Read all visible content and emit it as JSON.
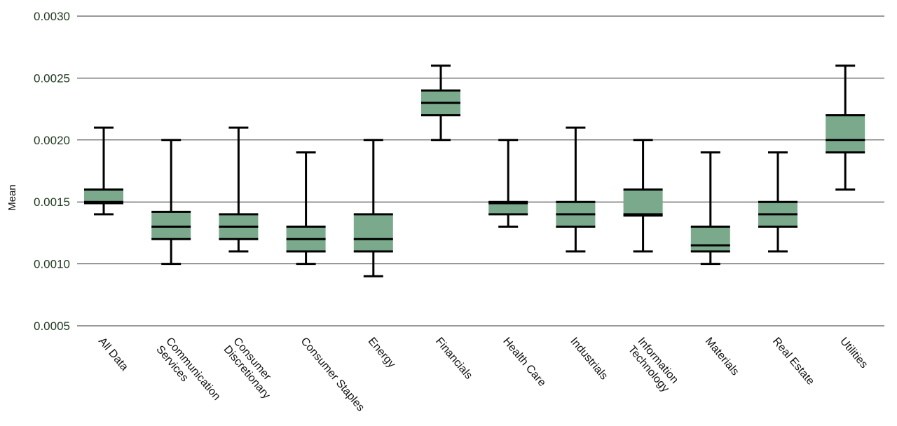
{
  "chart_data": {
    "type": "box",
    "ylabel": "Mean",
    "ylim": [
      0.0005,
      0.003
    ],
    "yticks": [
      "0.0005",
      "0.0010",
      "0.0015",
      "0.0020",
      "0.0025",
      "0.0030"
    ],
    "ytick_values": [
      0.0005,
      0.001,
      0.0015,
      0.002,
      0.0025,
      0.003
    ],
    "grid": true,
    "colors": {
      "box_fill": "#7aaa8b",
      "line": "#000000",
      "grid": "#333333",
      "tick_text": "#1f3a1f"
    },
    "categories": [
      {
        "label_lines": [
          "All Data"
        ],
        "min": 0.0014,
        "q1": 0.00149,
        "median": 0.0015,
        "q3": 0.0016,
        "max": 0.0021
      },
      {
        "label_lines": [
          "Communication",
          "Services"
        ],
        "min": 0.001,
        "q1": 0.0012,
        "median": 0.0013,
        "q3": 0.00142,
        "max": 0.002
      },
      {
        "label_lines": [
          "Consumer",
          "Discretionary"
        ],
        "min": 0.0011,
        "q1": 0.0012,
        "median": 0.0013,
        "q3": 0.0014,
        "max": 0.0021
      },
      {
        "label_lines": [
          "Consumer Staples"
        ],
        "min": 0.001,
        "q1": 0.0011,
        "median": 0.0012,
        "q3": 0.0013,
        "max": 0.0019
      },
      {
        "label_lines": [
          "Energy"
        ],
        "min": 0.0009,
        "q1": 0.0011,
        "median": 0.0012,
        "q3": 0.0014,
        "max": 0.002
      },
      {
        "label_lines": [
          "Financials"
        ],
        "min": 0.002,
        "q1": 0.0022,
        "median": 0.0023,
        "q3": 0.0024,
        "max": 0.0026
      },
      {
        "label_lines": [
          "Health Care"
        ],
        "min": 0.0013,
        "q1": 0.0014,
        "median": 0.00149,
        "q3": 0.0015,
        "max": 0.002
      },
      {
        "label_lines": [
          "Industrials"
        ],
        "min": 0.0011,
        "q1": 0.0013,
        "median": 0.0014,
        "q3": 0.0015,
        "max": 0.0021
      },
      {
        "label_lines": [
          "Information",
          "Technology"
        ],
        "min": 0.0011,
        "q1": 0.00139,
        "median": 0.0014,
        "q3": 0.0016,
        "max": 0.002
      },
      {
        "label_lines": [
          "Materials"
        ],
        "min": 0.001,
        "q1": 0.0011,
        "median": 0.00115,
        "q3": 0.0013,
        "max": 0.0019
      },
      {
        "label_lines": [
          "Real Estate"
        ],
        "min": 0.0011,
        "q1": 0.0013,
        "median": 0.0014,
        "q3": 0.0015,
        "max": 0.0019
      },
      {
        "label_lines": [
          "Utilities"
        ],
        "min": 0.0016,
        "q1": 0.0019,
        "median": 0.002,
        "q3": 0.0022,
        "max": 0.0026
      }
    ]
  }
}
